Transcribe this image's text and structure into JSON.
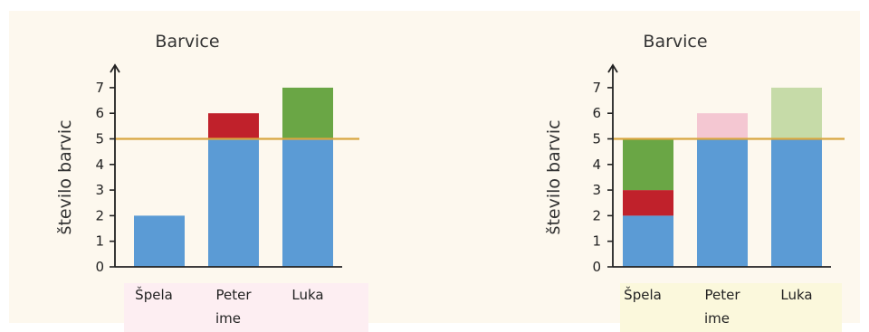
{
  "chart_data": [
    {
      "type": "bar",
      "title": "Barvice",
      "ylabel": "število barvic",
      "xlabel": "ime",
      "categories": [
        "Špela",
        "Peter",
        "Luka"
      ],
      "series": [
        {
          "values": [
            2,
            5,
            5
          ]
        },
        {
          "values": [
            0,
            1,
            0
          ]
        },
        {
          "values": [
            0,
            0,
            2
          ]
        }
      ],
      "series_colors": [
        "#5b9bd5",
        "#c0212b",
        "#6aa645"
      ],
      "reference_line": 5,
      "reference_color": "#d9a640",
      "ylim": [
        0,
        7
      ],
      "yticks": [
        "0",
        "1",
        "2",
        "3",
        "4",
        "5",
        "6",
        "7"
      ],
      "label_band_color": "#fdeef2"
    },
    {
      "type": "bar",
      "title": "Barvice",
      "ylabel": "število barvic",
      "xlabel": "ime",
      "categories": [
        "Špela",
        "Peter",
        "Luka"
      ],
      "series": [
        {
          "values": [
            2,
            5,
            5
          ]
        },
        {
          "values": [
            1,
            0,
            0
          ]
        },
        {
          "values": [
            2,
            0,
            0
          ]
        },
        {
          "values": [
            0,
            1,
            0
          ]
        },
        {
          "values": [
            0,
            0,
            2
          ]
        }
      ],
      "series_colors": [
        "#5b9bd5",
        "#c0212b",
        "#6aa645",
        "#f4c7d2",
        "#c6dba8"
      ],
      "reference_line": 5,
      "reference_color": "#d9a640",
      "ylim": [
        0,
        7
      ],
      "yticks": [
        "0",
        "1",
        "2",
        "3",
        "4",
        "5",
        "6",
        "7"
      ],
      "label_band_color": "#fbf8dc"
    }
  ]
}
